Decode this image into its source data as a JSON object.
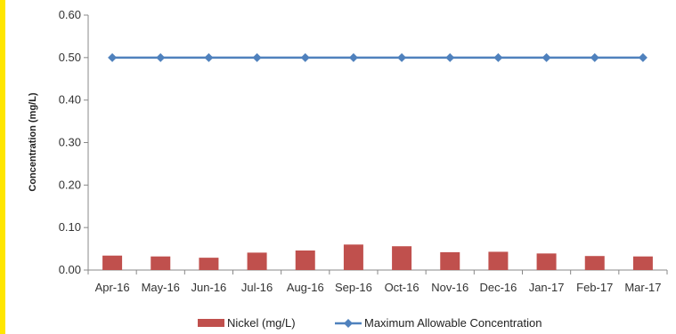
{
  "chart_data": {
    "type": "bar",
    "categories": [
      "Apr-16",
      "May-16",
      "Jun-16",
      "Jul-16",
      "Aug-16",
      "Sep-16",
      "Oct-16",
      "Nov-16",
      "Dec-16",
      "Jan-17",
      "Feb-17",
      "Mar-17"
    ],
    "series": [
      {
        "name": "Nickel (mg/L)",
        "kind": "bar",
        "color": "#c0504d",
        "values": [
          0.034,
          0.032,
          0.029,
          0.041,
          0.046,
          0.06,
          0.056,
          0.042,
          0.043,
          0.039,
          0.033,
          0.032
        ]
      },
      {
        "name": "Maximum Allowable Concentration",
        "kind": "line",
        "color": "#4f81bd",
        "marker": "diamond",
        "values": [
          0.5,
          0.5,
          0.5,
          0.5,
          0.5,
          0.5,
          0.5,
          0.5,
          0.5,
          0.5,
          0.5,
          0.5
        ]
      }
    ],
    "title": "",
    "xlabel": "",
    "ylabel": "Concentration (mg/L)",
    "ylim": [
      0,
      0.6
    ],
    "yticks": [
      "0.00",
      "0.10",
      "0.20",
      "0.30",
      "0.40",
      "0.50",
      "0.60"
    ],
    "grid": false,
    "legend_position": "bottom"
  },
  "colors": {
    "border_accent": "#ffe600",
    "axis": "#888888"
  }
}
